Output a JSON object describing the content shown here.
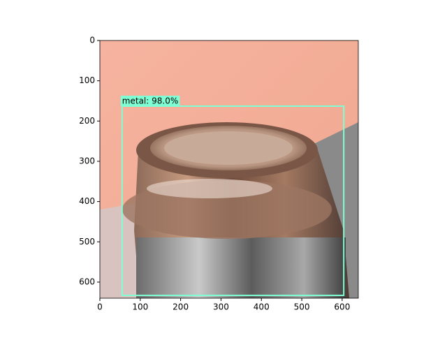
{
  "chart_data": {
    "type": "image",
    "xlim": [
      0,
      640
    ],
    "ylim": [
      640,
      0
    ],
    "xticks": [
      0,
      100,
      200,
      300,
      400,
      500,
      600
    ],
    "yticks": [
      0,
      100,
      200,
      300,
      400,
      500,
      600
    ],
    "boxes": [
      {
        "label": "metal: 98.0%",
        "xmin": 55,
        "ymin": 163,
        "xmax": 604,
        "ymax": 633,
        "color": "#7fffd4"
      }
    ]
  }
}
